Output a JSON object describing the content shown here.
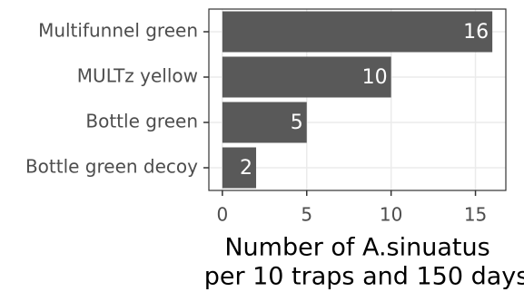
{
  "chart_data": {
    "type": "hbar",
    "categories": [
      "Multifunnel green",
      "MULTz yellow",
      "Bottle green",
      "Bottle green decoy"
    ],
    "values": [
      16,
      10,
      5,
      2
    ],
    "color": "#595959",
    "xlim": [
      -0.8,
      16.8
    ],
    "xticks": [
      0,
      5,
      10,
      15
    ],
    "grid": true,
    "xlabel": [
      "Number of A.sinuatus",
      "per 10 traps and 150 days"
    ]
  }
}
